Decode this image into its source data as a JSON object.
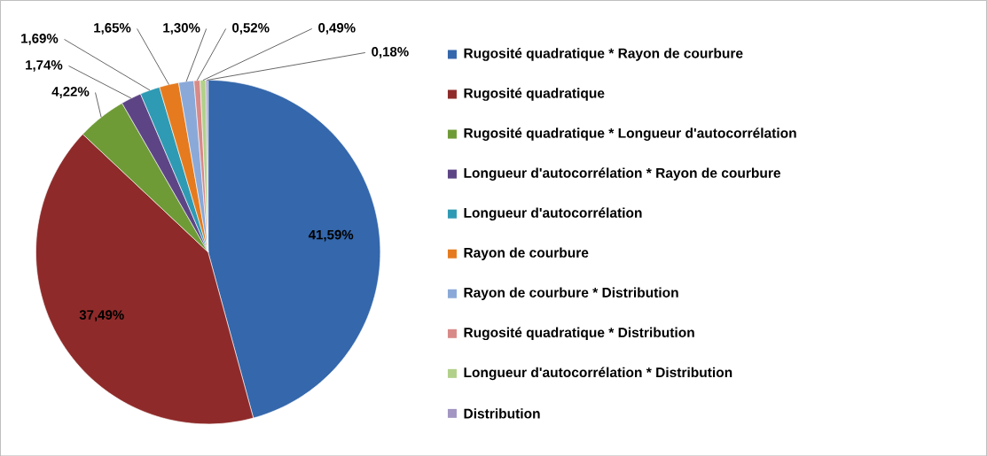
{
  "chart_data": {
    "type": "pie",
    "categories": [
      "Rugosité quadratique * Rayon de courbure",
      "Rugosité quadratique",
      "Rugosité quadratique * Longueur d'autocorrélation",
      "Longueur d'autocorrélation * Rayon de courbure",
      "Longueur d'autocorrélation",
      "Rayon de courbure",
      "Rayon de courbure * Distribution",
      "Rugosité quadratique * Distribution",
      "Longueur d'autocorrélation * Distribution",
      "Distribution"
    ],
    "values": [
      41.59,
      37.49,
      4.22,
      1.74,
      1.69,
      1.65,
      1.3,
      0.52,
      0.49,
      0.18
    ],
    "value_labels": [
      "41,59%",
      "37,49%",
      "4,22%",
      "1,74%",
      "1,69%",
      "1,65%",
      "1,30%",
      "0,52%",
      "0,49%",
      "0,18%"
    ],
    "colors": [
      "#3467ab",
      "#8e2b2a",
      "#6f9b37",
      "#5d4585",
      "#2f9ab3",
      "#e57b1e",
      "#8aa9d8",
      "#d88a88",
      "#b2d08a",
      "#a396c2"
    ],
    "legend": "right"
  }
}
